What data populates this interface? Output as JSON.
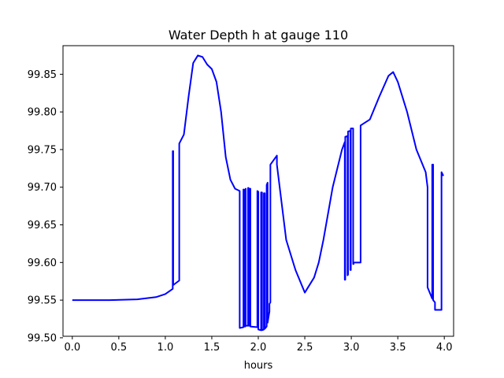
{
  "chart_data": {
    "type": "line",
    "title": "Water Depth h at gauge 110",
    "xlabel": "hours",
    "ylabel": "",
    "xlim": [
      -0.1,
      4.1
    ],
    "ylim": [
      99.502,
      99.888
    ],
    "grid": false,
    "xticks": [
      0.0,
      0.5,
      1.0,
      1.5,
      2.0,
      2.5,
      3.0,
      3.5,
      4.0
    ],
    "xtick_labels": [
      "0.0",
      "0.5",
      "1.0",
      "1.5",
      "2.0",
      "2.5",
      "3.0",
      "3.5",
      "4.0"
    ],
    "yticks": [
      99.5,
      99.55,
      99.6,
      99.65,
      99.7,
      99.75,
      99.8,
      99.85
    ],
    "ytick_labels": [
      "99.50",
      "99.55",
      "99.60",
      "99.65",
      "99.70",
      "99.75",
      "99.80",
      "99.85"
    ],
    "series": [
      {
        "color": "#0000ff",
        "x": [
          0.0,
          0.4,
          0.7,
          0.9,
          1.0,
          1.08,
          1.08,
          1.085,
          1.085,
          1.15,
          1.15,
          1.2,
          1.25,
          1.3,
          1.35,
          1.4,
          1.45,
          1.5,
          1.55,
          1.6,
          1.65,
          1.7,
          1.75,
          1.8,
          1.8,
          1.84,
          1.84,
          1.845,
          1.845,
          1.86,
          1.86,
          1.865,
          1.865,
          1.89,
          1.89,
          1.895,
          1.895,
          1.91,
          1.91,
          1.915,
          1.915,
          1.99,
          1.99,
          2.0,
          2.0,
          2.03,
          2.03,
          2.04,
          2.04,
          2.06,
          2.06,
          2.07,
          2.07,
          2.09,
          2.09,
          2.1,
          2.1,
          2.12,
          2.12,
          2.13,
          2.13,
          2.2,
          2.2,
          2.25,
          2.3,
          2.4,
          2.5,
          2.6,
          2.65,
          2.7,
          2.8,
          2.9,
          2.93,
          2.93,
          2.935,
          2.935,
          2.96,
          2.96,
          2.965,
          2.965,
          2.99,
          2.99,
          2.995,
          2.995,
          3.02,
          3.02,
          3.025,
          3.025,
          3.1,
          3.1,
          3.2,
          3.3,
          3.4,
          3.45,
          3.5,
          3.6,
          3.7,
          3.8,
          3.82,
          3.82,
          3.87,
          3.87,
          3.88,
          3.88,
          3.9,
          3.9,
          3.97,
          3.97,
          3.99
        ],
        "y": [
          99.55,
          99.55,
          99.551,
          99.554,
          99.558,
          99.565,
          99.748,
          99.748,
          99.57,
          99.576,
          99.758,
          99.77,
          99.82,
          99.865,
          99.875,
          99.873,
          99.863,
          99.857,
          99.84,
          99.8,
          99.74,
          99.71,
          99.698,
          99.695,
          99.513,
          99.514,
          99.697,
          99.697,
          99.515,
          99.515,
          99.697,
          99.698,
          99.516,
          99.516,
          99.699,
          99.699,
          99.516,
          99.516,
          99.698,
          99.698,
          99.515,
          99.514,
          99.695,
          99.694,
          99.511,
          99.51,
          99.693,
          99.693,
          99.51,
          99.511,
          99.692,
          99.692,
          99.512,
          99.515,
          99.703,
          99.706,
          99.52,
          99.535,
          99.545,
          99.547,
          99.73,
          99.742,
          99.73,
          99.68,
          99.63,
          99.59,
          99.56,
          99.58,
          99.6,
          99.63,
          99.7,
          99.75,
          99.76,
          99.577,
          99.577,
          99.767,
          99.768,
          99.583,
          99.584,
          99.774,
          99.775,
          99.59,
          99.59,
          99.778,
          99.778,
          99.598,
          99.598,
          99.6,
          99.6,
          99.782,
          99.79,
          99.82,
          99.848,
          99.853,
          99.84,
          99.8,
          99.75,
          99.72,
          99.7,
          99.567,
          99.552,
          99.73,
          99.73,
          99.55,
          99.547,
          99.537,
          99.537,
          99.72,
          99.715
        ]
      }
    ]
  }
}
